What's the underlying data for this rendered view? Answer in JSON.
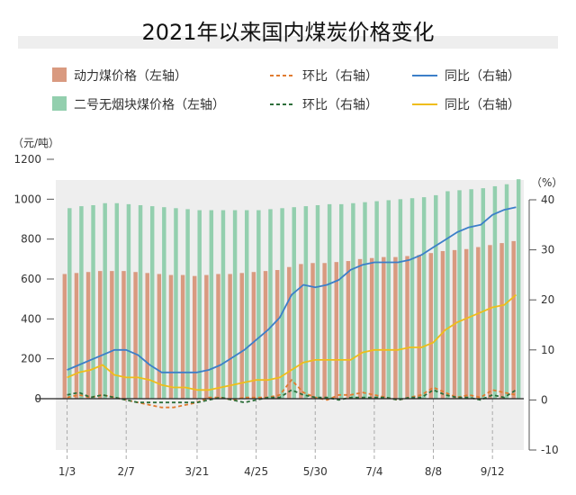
{
  "chart_data": {
    "type": "bar",
    "title": "2021年以来国内煤炭价格变化",
    "left_unit": "（元/吨）",
    "right_unit": "（%）",
    "left_axis": {
      "ticks": [
        0,
        200,
        400,
        600,
        800,
        1000,
        1200
      ],
      "range": [
        0,
        1200
      ]
    },
    "right_axis": {
      "ticks": [
        -10,
        0,
        10,
        20,
        30,
        40
      ],
      "range": [
        -10,
        40
      ]
    },
    "x_tick_labels": [
      "1/3",
      "2/7",
      "3/21",
      "4/25",
      "5/30",
      "7/4",
      "8/8",
      "9/12"
    ],
    "x_tick_week_index": [
      0,
      5,
      11,
      16,
      21,
      26,
      31,
      36
    ],
    "weeks": 39,
    "legend": {
      "thermal": "动力煤价格（左轴）",
      "anthracite": "二号无烟块煤价格（左轴）",
      "thermal_mom": "环比（右轴）",
      "anthracite_mom": "环比（右轴）",
      "thermal_yoy": "同比（右轴）",
      "anthracite_yoy": "同比（右轴）"
    },
    "colors": {
      "thermal": "#d99a80",
      "anthracite": "#93cfae",
      "thermal_mom": "#e07b30",
      "anthracite_mom": "#2d6e3a",
      "thermal_yoy": "#3c7fc9",
      "anthracite_yoy": "#efbd1a",
      "gray_bg": "#eeeeee"
    },
    "series": [
      {
        "name": "动力煤价格（左轴）",
        "axis": "left",
        "values": [
          625,
          630,
          635,
          640,
          640,
          640,
          635,
          630,
          625,
          620,
          620,
          615,
          620,
          625,
          625,
          630,
          635,
          640,
          645,
          660,
          675,
          680,
          680,
          685,
          690,
          700,
          705,
          710,
          710,
          715,
          720,
          730,
          740,
          745,
          750,
          760,
          770,
          780,
          790
        ]
      },
      {
        "name": "二号无烟块煤价格（左轴）",
        "axis": "left",
        "values": [
          955,
          965,
          970,
          980,
          980,
          975,
          970,
          965,
          960,
          955,
          950,
          945,
          945,
          945,
          945,
          945,
          945,
          950,
          955,
          960,
          965,
          970,
          975,
          975,
          980,
          985,
          990,
          995,
          1000,
          1005,
          1010,
          1020,
          1040,
          1045,
          1050,
          1055,
          1065,
          1075,
          1100
        ]
      },
      {
        "name": "同比（右轴）",
        "axis": "right",
        "values": [
          6,
          7,
          8,
          9,
          10,
          10,
          9,
          7,
          5.5,
          5.5,
          5.5,
          5.5,
          6,
          7,
          8.5,
          10,
          12,
          14,
          16.5,
          21,
          23,
          22.5,
          23,
          24,
          26,
          27,
          27.5,
          27.5,
          27.5,
          28,
          29,
          30.5,
          32,
          33.5,
          34.5,
          35,
          37,
          38,
          38.5
        ]
      },
      {
        "name": "同比（右轴）",
        "axis": "right",
        "values": [
          4.5,
          5.5,
          6,
          7,
          5,
          4.5,
          4.5,
          4,
          3,
          2.5,
          2.5,
          2,
          2,
          2.5,
          3,
          3.5,
          4,
          4,
          4.5,
          6,
          7.5,
          8,
          8,
          8,
          8,
          9.5,
          10,
          10,
          10,
          10.5,
          10.5,
          11.5,
          14,
          15.5,
          16.5,
          17.5,
          18.5,
          19,
          21
        ]
      },
      {
        "name": "环比（右轴）",
        "axis": "right",
        "values": [
          0.5,
          1,
          0.5,
          1,
          0.5,
          0,
          -0.5,
          -1,
          -1.5,
          -1.5,
          -1,
          -0.5,
          0.5,
          0.5,
          0,
          0.5,
          0.5,
          0.5,
          1,
          4,
          1.5,
          0.5,
          0,
          1,
          1,
          1.5,
          1,
          0.5,
          0,
          0.5,
          1,
          2.5,
          1.5,
          0.5,
          1,
          0.5,
          2,
          1.5,
          1
        ]
      },
      {
        "name": "环比（右轴）",
        "axis": "right",
        "values": [
          1,
          1.5,
          0.5,
          1,
          0.5,
          0,
          -0.5,
          -0.5,
          -0.5,
          -0.5,
          -0.5,
          -0.5,
          0,
          0.5,
          0,
          -0.5,
          0,
          0.5,
          0.5,
          2,
          1,
          0.5,
          0.5,
          0,
          0.5,
          0.5,
          0.5,
          0.5,
          0,
          0.5,
          0.5,
          2,
          1,
          0.5,
          0.5,
          0,
          1,
          0.5,
          2
        ]
      }
    ]
  }
}
